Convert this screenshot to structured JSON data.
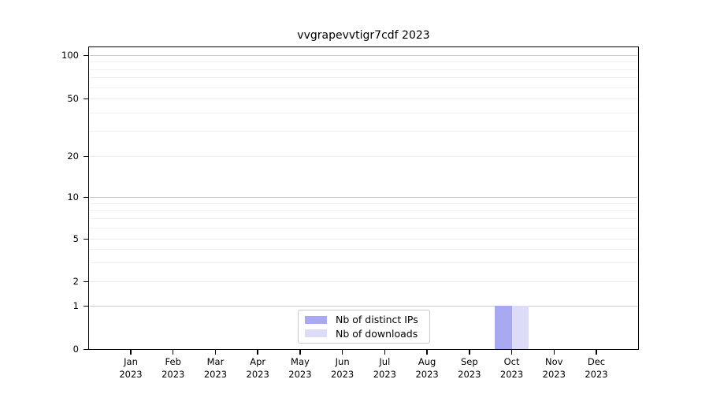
{
  "title": "vvgrapevvtigr7cdf 2023",
  "chart_data": {
    "type": "bar",
    "title": "vvgrapevvtigr7cdf 2023",
    "categories": [
      "Jan 2023",
      "Feb 2023",
      "Mar 2023",
      "Apr 2023",
      "May 2023",
      "Jun 2023",
      "Jul 2023",
      "Aug 2023",
      "Sep 2023",
      "Oct 2023",
      "Nov 2023",
      "Dec 2023"
    ],
    "x_ticks": [
      {
        "top": "Jan",
        "bottom": "2023"
      },
      {
        "top": "Feb",
        "bottom": "2023"
      },
      {
        "top": "Mar",
        "bottom": "2023"
      },
      {
        "top": "Apr",
        "bottom": "2023"
      },
      {
        "top": "May",
        "bottom": "2023"
      },
      {
        "top": "Jun",
        "bottom": "2023"
      },
      {
        "top": "Jul",
        "bottom": "2023"
      },
      {
        "top": "Aug",
        "bottom": "2023"
      },
      {
        "top": "Sep",
        "bottom": "2023"
      },
      {
        "top": "Oct",
        "bottom": "2023"
      },
      {
        "top": "Nov",
        "bottom": "2023"
      },
      {
        "top": "Dec",
        "bottom": "2023"
      }
    ],
    "series": [
      {
        "name": "Nb of distinct IPs",
        "color": "#a9a9f1",
        "values": [
          0,
          0,
          0,
          0,
          0,
          0,
          0,
          0,
          0,
          1,
          0,
          0
        ]
      },
      {
        "name": "Nb of downloads",
        "color": "#dcdcf8",
        "values": [
          0,
          0,
          0,
          0,
          0,
          0,
          0,
          0,
          0,
          1,
          0,
          0
        ]
      }
    ],
    "xlabel": "",
    "ylabel": "",
    "y_scale": "symlog-like",
    "y_ticks": [
      0,
      1,
      2,
      5,
      10,
      20,
      50,
      100
    ],
    "y_major_grid_values": [
      1,
      10,
      100
    ],
    "y_labeled_minor_grid_values": [
      2,
      5,
      20,
      50
    ],
    "y_minor_grid_values": [
      3,
      4,
      6,
      7,
      8,
      9,
      30,
      40,
      60,
      70,
      80,
      90
    ],
    "ylim": [
      0,
      113
    ],
    "grid": true,
    "legend_position": "lower center (inside axes)",
    "colors": {
      "axis": "#000000",
      "major_grid": "#c9c9c9",
      "minor_grid": "#f0f0f0",
      "background": "#ffffff"
    }
  }
}
